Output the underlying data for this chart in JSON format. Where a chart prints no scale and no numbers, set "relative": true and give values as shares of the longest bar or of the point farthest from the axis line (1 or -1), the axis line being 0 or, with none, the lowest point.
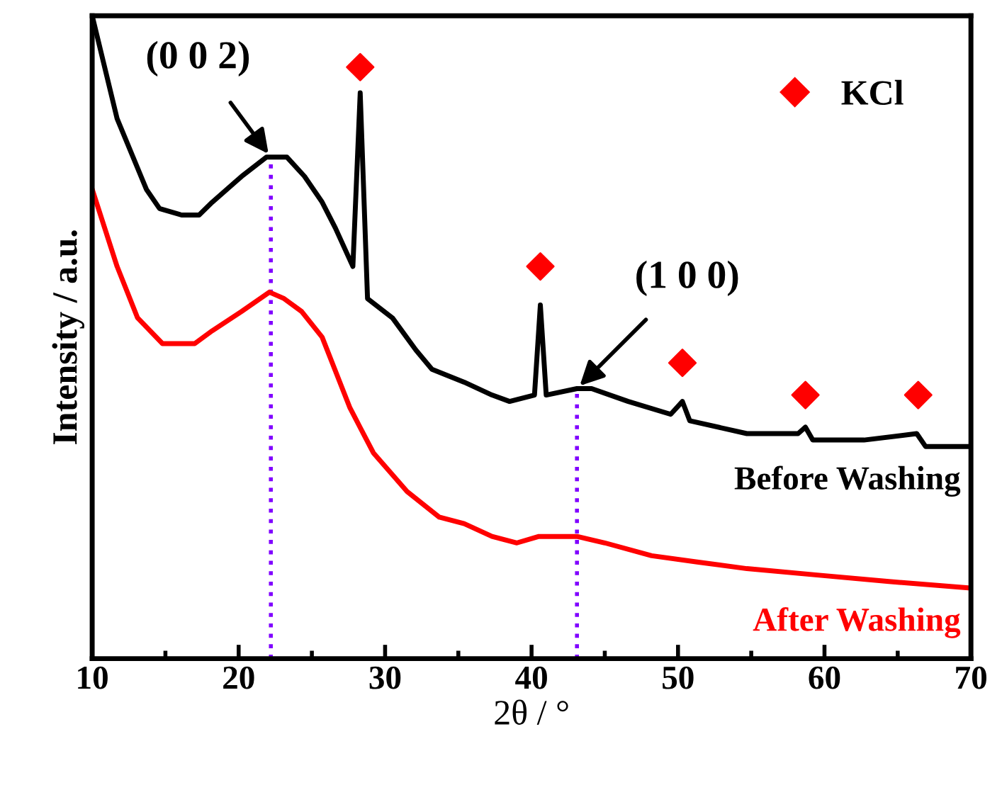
{
  "chart_data": {
    "type": "line",
    "relative": true,
    "xlabel": "2θ / °",
    "ylabel": "Intensity / a.u.",
    "xlim": [
      10,
      70
    ],
    "xticks": [
      10,
      20,
      30,
      40,
      50,
      60,
      70
    ],
    "grid": false,
    "legend": "top right",
    "x": [
      10.0,
      11.7,
      13.7,
      14.6,
      16.1,
      17.3,
      18.2,
      20.2,
      21.9,
      23.3,
      24.5,
      25.7,
      26.6,
      27.8,
      28.3,
      28.8,
      30.5,
      32.1,
      33.2,
      35.4,
      37.3,
      38.5,
      40.2,
      40.6,
      41.0,
      43.1,
      44.1,
      46.6,
      49.5,
      50.3,
      50.8,
      54.7,
      58.2,
      58.7,
      59.2,
      62.7,
      66.3,
      66.9,
      69.8
    ],
    "series": [
      {
        "name": "Before Washing",
        "color": "#000000",
        "values": [
          1.0,
          0.84,
          0.73,
          0.7,
          0.69,
          0.69,
          0.71,
          0.75,
          0.78,
          0.78,
          0.75,
          0.71,
          0.67,
          0.61,
          0.88,
          0.56,
          0.53,
          0.48,
          0.45,
          0.43,
          0.41,
          0.4,
          0.41,
          0.55,
          0.41,
          0.42,
          0.42,
          0.4,
          0.38,
          0.4,
          0.37,
          0.35,
          0.35,
          0.36,
          0.34,
          0.34,
          0.35,
          0.33,
          0.33
        ]
      },
      {
        "name": "After Washing",
        "color": "#ff0000",
        "x": [
          10.0,
          11.7,
          13.1,
          14.8,
          17.0,
          18.2,
          20.2,
          22.1,
          23.1,
          24.3,
          25.7,
          27.6,
          29.2,
          31.5,
          33.7,
          35.4,
          37.3,
          39.0,
          40.5,
          43.1,
          45.0,
          48.2,
          51.4,
          54.7,
          59.5,
          64.4,
          69.8
        ],
        "values": [
          0.73,
          0.61,
          0.53,
          0.49,
          0.49,
          0.51,
          0.54,
          0.57,
          0.56,
          0.54,
          0.5,
          0.39,
          0.32,
          0.26,
          0.22,
          0.21,
          0.19,
          0.18,
          0.19,
          0.19,
          0.18,
          0.16,
          0.15,
          0.14,
          0.13,
          0.12,
          0.11
        ]
      },
      {
        "name": "KCl",
        "type": "scatter",
        "marker": "diamond",
        "color": "#ff0000",
        "x": [
          28.3,
          40.6,
          50.3,
          58.7,
          66.4
        ],
        "values": [
          0.92,
          0.61,
          0.46,
          0.41,
          0.41
        ]
      }
    ],
    "ref_lines": [
      {
        "axis": "x",
        "value": 22.2,
        "color": "#8000ff",
        "line_style": "dotted"
      },
      {
        "axis": "x",
        "value": 43.1,
        "color": "#8000ff",
        "line_style": "dotted"
      }
    ],
    "annotations": [
      {
        "text": "(0 0 2)",
        "x": 22.2,
        "y": 0.78
      },
      {
        "text": "(1 0 0)",
        "x": 43.1,
        "y": 0.42
      }
    ]
  }
}
